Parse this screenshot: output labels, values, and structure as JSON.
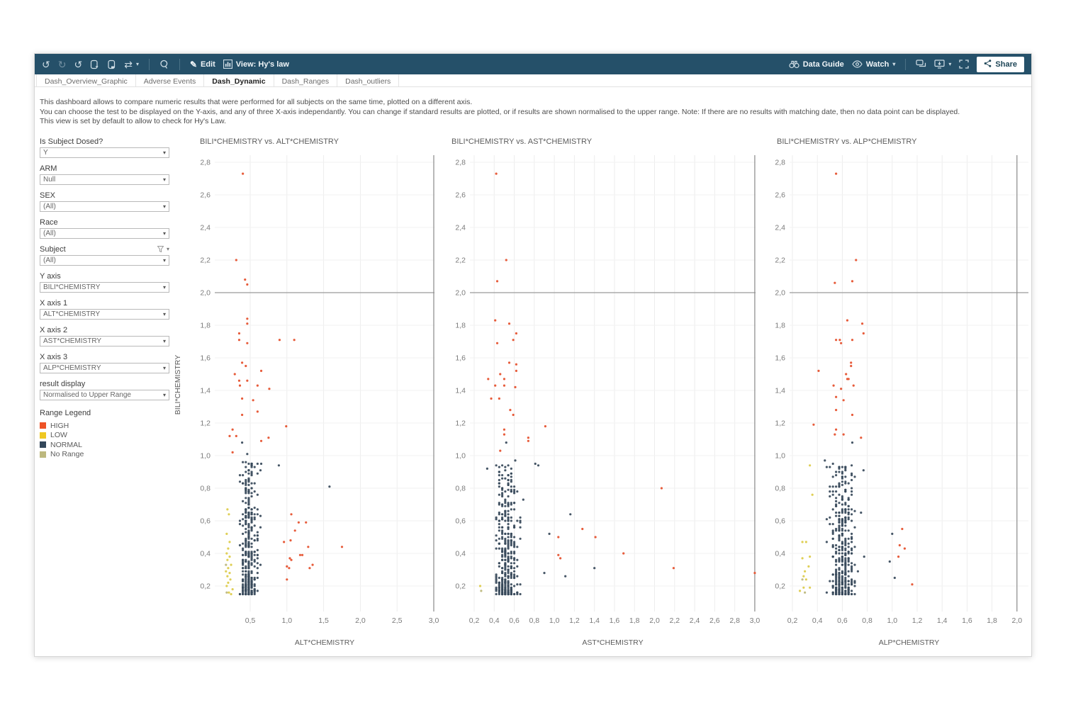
{
  "toolbar": {
    "edit_label": "Edit",
    "view_label": "View: Hy's law",
    "data_guide_label": "Data Guide",
    "watch_label": "Watch",
    "share_label": "Share"
  },
  "tabs": [
    {
      "label": "Dash_Overview_Graphic",
      "active": false
    },
    {
      "label": "Adverse Events",
      "active": false
    },
    {
      "label": "Dash_Dynamic",
      "active": true
    },
    {
      "label": "Dash_Ranges",
      "active": false
    },
    {
      "label": "Dash_outliers",
      "active": false
    }
  ],
  "description": {
    "lines": [
      "This dashboard allows to compare numeric results that were performed for all subjects on the same time, plotted on a different axis.",
      "You can choose the test to be displayed on the Y-axis, and any of three X-axis independantly. You can change if standard results are plotted, or if results are shown normalised to the upper range. Note: If there are no results with matching date, then no data point can be displayed.",
      "This view is set by default to allow to check for Hy's Law."
    ]
  },
  "sidebar": {
    "filters": [
      {
        "label": "Is Subject Dosed?",
        "value": "Y",
        "has_filter_icon": false
      },
      {
        "label": "ARM",
        "value": "Null",
        "has_filter_icon": false
      },
      {
        "label": "SEX",
        "value": "(All)",
        "has_filter_icon": false
      },
      {
        "label": "Race",
        "value": "(All)",
        "has_filter_icon": false
      },
      {
        "label": "Subject",
        "value": "(All)",
        "has_filter_icon": true
      },
      {
        "label": "Y axis",
        "value": "BILI*CHEMISTRY",
        "has_filter_icon": false
      },
      {
        "label": "X axis 1",
        "value": "ALT*CHEMISTRY",
        "has_filter_icon": false
      },
      {
        "label": "X axis 2",
        "value": "AST*CHEMISTRY",
        "has_filter_icon": false
      },
      {
        "label": "X axis 3",
        "value": "ALP*CHEMISTRY",
        "has_filter_icon": false
      },
      {
        "label": "result display",
        "value": "Normalised to Upper Range",
        "has_filter_icon": false
      }
    ],
    "legend": {
      "title": "Range Legend",
      "items": [
        {
          "label": "HIGH",
          "color": "#ee5327"
        },
        {
          "label": "LOW",
          "color": "#efc822"
        },
        {
          "label": "NORMAL",
          "color": "#33475a"
        },
        {
          "label": "No Range",
          "color": "#bdb87e"
        }
      ]
    }
  },
  "colors": {
    "toolbar_bg": "#255069",
    "high": "#e65330",
    "low": "#ddcc4d",
    "normal": "#37495a",
    "no_range": "#bdb87e",
    "ref_line": "#9a9a9a",
    "grid_v": "#ededed",
    "grid_h": "#f2f2f2",
    "axis_text": "#7a7a7a",
    "title_text": "#5c5c5c"
  },
  "chart_data": [
    {
      "type": "scatter",
      "title": "BILI*CHEMISTRY vs. ALT*CHEMISTRY",
      "xlabel": "ALT*CHEMISTRY",
      "ylabel": "BILI*CHEMISTRY",
      "x_ticks": [
        0.5,
        1.0,
        1.5,
        2.0,
        2.5,
        3.0
      ],
      "y_ticks": [
        0.2,
        0.4,
        0.6,
        0.8,
        1.0,
        1.2,
        1.4,
        1.6,
        1.8,
        2.0,
        2.2,
        2.4,
        2.6,
        2.8
      ],
      "x_range": [
        0.02,
        3.02
      ],
      "y_range": [
        0.04,
        2.84
      ],
      "ref_line_y": 2.0,
      "ref_line_x": 3.0,
      "high_points": [
        [
          0.4,
          2.73
        ],
        [
          0.31,
          2.2
        ],
        [
          0.43,
          2.08
        ],
        [
          0.46,
          2.05
        ],
        [
          0.46,
          1.84
        ],
        [
          0.46,
          1.81
        ],
        [
          0.35,
          1.75
        ],
        [
          0.35,
          1.71
        ],
        [
          0.46,
          1.69
        ],
        [
          0.9,
          1.71
        ],
        [
          1.1,
          1.71
        ],
        [
          0.39,
          1.57
        ],
        [
          0.44,
          1.55
        ],
        [
          0.29,
          1.5
        ],
        [
          0.65,
          1.52
        ],
        [
          0.35,
          1.46
        ],
        [
          0.46,
          1.46
        ],
        [
          0.36,
          1.43
        ],
        [
          0.6,
          1.43
        ],
        [
          0.76,
          1.41
        ],
        [
          0.39,
          1.35
        ],
        [
          0.54,
          1.34
        ],
        [
          0.6,
          1.27
        ],
        [
          0.39,
          1.25
        ],
        [
          0.99,
          1.18
        ],
        [
          0.26,
          1.16
        ],
        [
          0.22,
          1.12
        ],
        [
          0.31,
          1.12
        ],
        [
          0.75,
          1.11
        ],
        [
          0.65,
          1.09
        ],
        [
          0.26,
          1.02
        ],
        [
          1.06,
          0.64
        ],
        [
          1.16,
          0.59
        ],
        [
          1.26,
          0.59
        ],
        [
          1.11,
          0.54
        ],
        [
          1.05,
          0.48
        ],
        [
          0.96,
          0.47
        ],
        [
          1.29,
          0.44
        ],
        [
          1.75,
          0.44
        ],
        [
          1.18,
          0.39
        ],
        [
          1.21,
          0.39
        ],
        [
          1.04,
          0.37
        ],
        [
          1.06,
          0.36
        ],
        [
          1.35,
          0.33
        ],
        [
          1.0,
          0.32
        ],
        [
          1.03,
          0.31
        ],
        [
          1.31,
          0.31
        ],
        [
          1.0,
          0.24
        ]
      ],
      "low_points": [
        [
          0.19,
          0.67
        ],
        [
          0.21,
          0.64
        ],
        [
          0.18,
          0.52
        ],
        [
          0.22,
          0.47
        ],
        [
          0.2,
          0.43
        ],
        [
          0.18,
          0.4
        ],
        [
          0.22,
          0.38
        ],
        [
          0.19,
          0.36
        ],
        [
          0.24,
          0.33
        ],
        [
          0.2,
          0.31
        ],
        [
          0.17,
          0.29
        ],
        [
          0.22,
          0.28
        ],
        [
          0.19,
          0.26
        ],
        [
          0.23,
          0.24
        ],
        [
          0.2,
          0.22
        ],
        [
          0.18,
          0.2
        ],
        [
          0.26,
          0.18
        ],
        [
          0.21,
          0.16
        ],
        [
          0.24,
          0.15
        ]
      ],
      "no_range_points": [
        [
          0.17,
          0.33
        ],
        [
          0.18,
          0.16
        ]
      ],
      "normal_points": [
        [
          0.39,
          1.08
        ],
        [
          0.46,
          1.01
        ],
        [
          0.65,
          0.95
        ],
        [
          0.89,
          0.94
        ],
        [
          1.58,
          0.81
        ]
      ],
      "normal_cluster_model": {
        "count": 380,
        "seed": 7,
        "x_mode": 0.48,
        "x_spread": 0.4,
        "x_min": 0.24,
        "x_max": 1.3,
        "x_step": 0.04,
        "y_min": 0.15,
        "y_max": 0.96,
        "y_pow": 1.9,
        "y_step": 0.01
      }
    },
    {
      "type": "scatter",
      "title": "BILI*CHEMISTRY vs. AST*CHEMISTRY",
      "xlabel": "AST*CHEMISTRY",
      "ylabel": "BILI*CHEMISTRY",
      "x_ticks": [
        0.2,
        0.4,
        0.6,
        0.8,
        1.0,
        1.2,
        1.4,
        1.6,
        1.8,
        2.0,
        2.2,
        2.4,
        2.6,
        2.8,
        3.0
      ],
      "y_ticks": [
        0.2,
        0.4,
        0.6,
        0.8,
        1.0,
        1.2,
        1.4,
        1.6,
        1.8,
        2.0,
        2.2,
        2.4,
        2.6,
        2.8
      ],
      "x_range": [
        0.16,
        3.02
      ],
      "y_range": [
        0.04,
        2.84
      ],
      "ref_line_y": 2.0,
      "ref_line_x": 3.0,
      "high_points": [
        [
          0.42,
          2.73
        ],
        [
          0.52,
          2.2
        ],
        [
          0.43,
          2.07
        ],
        [
          0.41,
          1.83
        ],
        [
          0.55,
          1.81
        ],
        [
          0.62,
          1.75
        ],
        [
          0.59,
          1.71
        ],
        [
          0.43,
          1.69
        ],
        [
          0.55,
          1.57
        ],
        [
          0.62,
          1.56
        ],
        [
          0.62,
          1.52
        ],
        [
          0.46,
          1.5
        ],
        [
          0.34,
          1.47
        ],
        [
          0.5,
          1.47
        ],
        [
          0.41,
          1.43
        ],
        [
          0.5,
          1.43
        ],
        [
          0.61,
          1.42
        ],
        [
          0.37,
          1.35
        ],
        [
          0.45,
          1.35
        ],
        [
          0.56,
          1.28
        ],
        [
          0.59,
          1.25
        ],
        [
          0.91,
          1.18
        ],
        [
          0.5,
          1.16
        ],
        [
          0.5,
          1.13
        ],
        [
          0.74,
          1.11
        ],
        [
          0.74,
          1.09
        ],
        [
          0.46,
          1.03
        ],
        [
          2.07,
          0.8
        ],
        [
          1.28,
          0.55
        ],
        [
          1.04,
          0.5
        ],
        [
          1.41,
          0.5
        ],
        [
          1.69,
          0.4
        ],
        [
          1.04,
          0.39
        ],
        [
          1.06,
          0.37
        ],
        [
          2.19,
          0.31
        ],
        [
          3.0,
          0.28
        ]
      ],
      "low_points": [
        [
          0.26,
          0.2
        ]
      ],
      "no_range_points": [
        [
          0.27,
          0.17
        ]
      ],
      "normal_points": [
        [
          0.52,
          1.08
        ],
        [
          0.33,
          0.92
        ],
        [
          0.61,
          0.97
        ],
        [
          0.81,
          0.95
        ],
        [
          0.84,
          0.94
        ],
        [
          1.16,
          0.64
        ],
        [
          0.95,
          0.52
        ],
        [
          1.4,
          0.31
        ],
        [
          1.11,
          0.26
        ],
        [
          0.9,
          0.28
        ]
      ],
      "normal_cluster_model": {
        "count": 390,
        "seed": 13,
        "x_mode": 0.52,
        "x_spread": 0.33,
        "x_min": 0.26,
        "x_max": 1.15,
        "x_step": 0.03,
        "y_min": 0.15,
        "y_max": 0.95,
        "y_pow": 1.9,
        "y_step": 0.01
      }
    },
    {
      "type": "scatter",
      "title": "BILI*CHEMISTRY vs. ALP*CHEMISTRY",
      "xlabel": "ALP*CHEMISTRY",
      "ylabel": "BILI*CHEMISTRY",
      "x_ticks": [
        0.2,
        0.4,
        0.6,
        0.8,
        1.0,
        1.2,
        1.4,
        1.6,
        1.8,
        2.0
      ],
      "y_ticks": [
        0.2,
        0.4,
        0.6,
        0.8,
        1.0,
        1.2,
        1.4,
        1.6,
        1.8,
        2.0,
        2.2,
        2.4,
        2.6,
        2.8
      ],
      "x_range": [
        0.18,
        2.09
      ],
      "y_range": [
        0.04,
        2.84
      ],
      "ref_line_y": 2.0,
      "ref_line_x": 2.0,
      "high_points": [
        [
          0.55,
          2.73
        ],
        [
          0.71,
          2.2
        ],
        [
          0.68,
          2.07
        ],
        [
          0.54,
          2.06
        ],
        [
          0.64,
          1.83
        ],
        [
          0.76,
          1.81
        ],
        [
          0.77,
          1.75
        ],
        [
          0.55,
          1.71
        ],
        [
          0.58,
          1.71
        ],
        [
          0.68,
          1.71
        ],
        [
          0.59,
          1.69
        ],
        [
          0.67,
          1.57
        ],
        [
          0.67,
          1.55
        ],
        [
          0.41,
          1.52
        ],
        [
          0.63,
          1.5
        ],
        [
          0.64,
          1.47
        ],
        [
          0.65,
          1.47
        ],
        [
          0.53,
          1.43
        ],
        [
          0.69,
          1.43
        ],
        [
          0.59,
          1.41
        ],
        [
          0.55,
          1.36
        ],
        [
          0.61,
          1.34
        ],
        [
          0.55,
          1.28
        ],
        [
          0.68,
          1.25
        ],
        [
          0.37,
          1.19
        ],
        [
          0.55,
          1.16
        ],
        [
          0.54,
          1.13
        ],
        [
          0.61,
          1.13
        ],
        [
          0.75,
          1.11
        ],
        [
          1.08,
          0.55
        ],
        [
          1.06,
          0.45
        ],
        [
          1.1,
          0.43
        ],
        [
          1.05,
          0.38
        ],
        [
          1.16,
          0.21
        ]
      ],
      "low_points": [
        [
          0.34,
          0.94
        ],
        [
          0.36,
          0.76
        ],
        [
          0.28,
          0.47
        ],
        [
          0.31,
          0.47
        ],
        [
          0.34,
          0.38
        ],
        [
          0.28,
          0.37
        ],
        [
          0.33,
          0.32
        ],
        [
          0.3,
          0.29
        ],
        [
          0.29,
          0.26
        ],
        [
          0.31,
          0.24
        ],
        [
          0.26,
          0.17
        ],
        [
          0.29,
          0.19
        ],
        [
          0.34,
          0.19
        ]
      ],
      "no_range_points": [
        [
          0.28,
          0.24
        ],
        [
          0.3,
          0.16
        ]
      ],
      "normal_points": [
        [
          0.68,
          1.08
        ],
        [
          0.46,
          0.97
        ],
        [
          0.77,
          0.91
        ],
        [
          1.0,
          0.52
        ],
        [
          0.98,
          0.35
        ],
        [
          1.02,
          0.25
        ]
      ],
      "normal_cluster_model": {
        "count": 400,
        "seed": 21,
        "x_mode": 0.6,
        "x_spread": 0.28,
        "x_min": 0.32,
        "x_max": 1.08,
        "x_step": 0.025,
        "y_min": 0.15,
        "y_max": 0.95,
        "y_pow": 1.9,
        "y_step": 0.01
      }
    }
  ]
}
